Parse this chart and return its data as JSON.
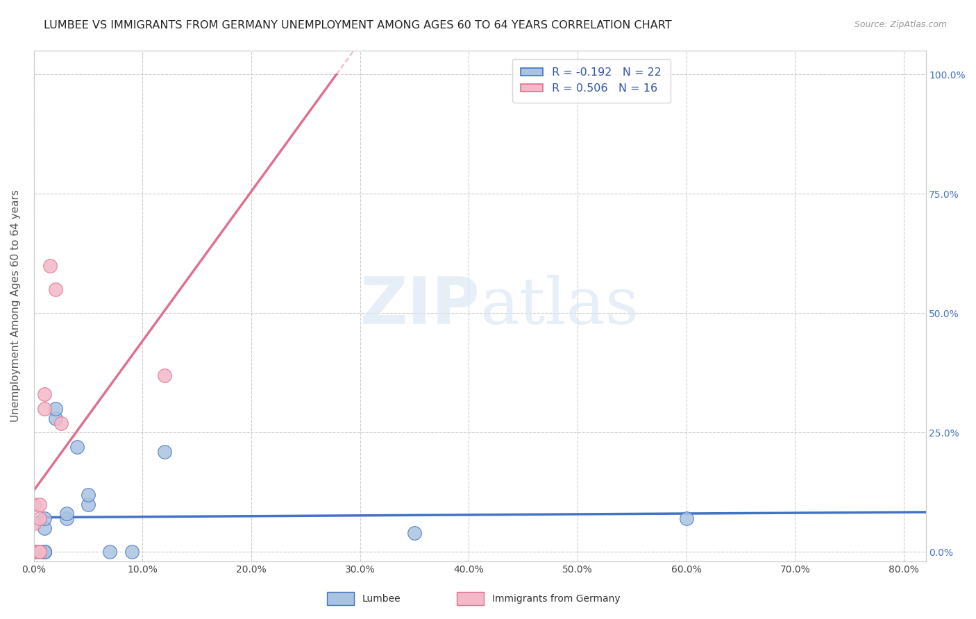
{
  "title": "LUMBEE VS IMMIGRANTS FROM GERMANY UNEMPLOYMENT AMONG AGES 60 TO 64 YEARS CORRELATION CHART",
  "source": "Source: ZipAtlas.com",
  "ylabel": "Unemployment Among Ages 60 to 64 years",
  "ylabel_right_ticks": [
    "0.0%",
    "25.0%",
    "50.0%",
    "75.0%",
    "100.0%"
  ],
  "legend_lumbee_R": "R = -0.192",
  "legend_lumbee_N": "N = 22",
  "legend_germany_R": "R = 0.506",
  "legend_germany_N": "N = 16",
  "lumbee_color": "#a8c4e0",
  "germany_color": "#f4b8c8",
  "lumbee_line_color": "#4472c4",
  "germany_line_color": "#e07090",
  "lumbee_x": [
    0.0,
    0.0,
    0.5,
    0.5,
    1.0,
    1.0,
    1.0,
    1.0,
    1.0,
    1.0,
    2.0,
    2.0,
    3.0,
    3.0,
    4.0,
    5.0,
    5.0,
    7.0,
    9.0,
    12.0,
    35.0,
    60.0
  ],
  "lumbee_y": [
    0.0,
    0.0,
    0.0,
    0.0,
    0.0,
    0.0,
    0.0,
    0.0,
    5.0,
    7.0,
    28.0,
    30.0,
    7.0,
    8.0,
    22.0,
    10.0,
    12.0,
    0.0,
    0.0,
    21.0,
    4.0,
    7.0
  ],
  "germany_x": [
    0.0,
    0.0,
    0.0,
    0.0,
    0.0,
    0.0,
    0.5,
    0.5,
    0.5,
    0.5,
    1.0,
    1.0,
    1.5,
    2.0,
    2.5,
    12.0
  ],
  "germany_y": [
    0.0,
    0.0,
    0.0,
    0.0,
    6.0,
    10.0,
    0.0,
    0.0,
    7.0,
    10.0,
    30.0,
    33.0,
    60.0,
    55.0,
    27.0,
    37.0
  ],
  "xlim": [
    0.0,
    82.0
  ],
  "ylim": [
    -2.0,
    105.0
  ],
  "xticks": [
    0,
    10,
    20,
    30,
    40,
    50,
    60,
    70,
    80
  ],
  "yticks": [
    0,
    25,
    50,
    75,
    100
  ]
}
